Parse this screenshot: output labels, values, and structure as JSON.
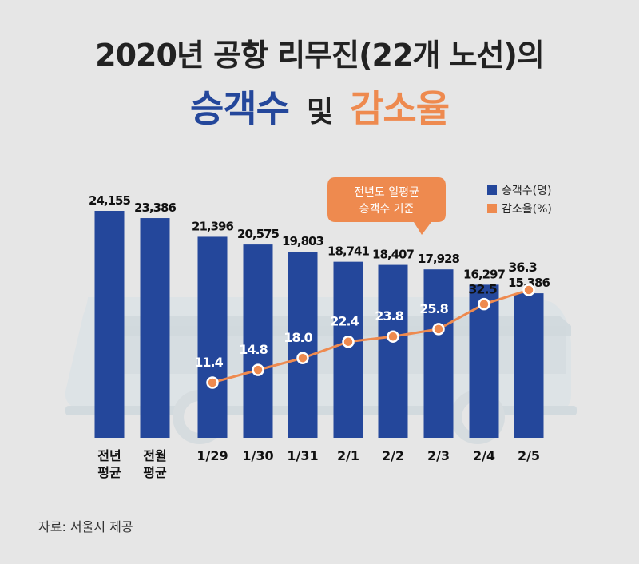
{
  "title": {
    "line1": "2020년 공항 리무진(22개 노선)의",
    "line2_blue": "승객수",
    "line2_mid": "및",
    "line2_orange": "감소율"
  },
  "source": "자료: 서울시 제공",
  "colors": {
    "bar": "#24479b",
    "line": "#ee8a4f",
    "background": "#e6e6e6",
    "bus_silhouette": "#dde3e6"
  },
  "chart_data": {
    "type": "bar+line",
    "categories": [
      "전년\n평균",
      "전월\n평균",
      "1/29",
      "1/30",
      "1/31",
      "2/1",
      "2/2",
      "2/3",
      "2/4",
      "2/5"
    ],
    "series": [
      {
        "name": "승객수(명)",
        "type": "bar",
        "values": [
          24155,
          23386,
          21396,
          20575,
          19803,
          18741,
          18407,
          17928,
          16297,
          15386
        ],
        "labels": [
          "24,155",
          "23,386",
          "21,396",
          "20,575",
          "19,803",
          "18,741",
          "18,407",
          "17,928",
          "16,297",
          "15,386"
        ]
      },
      {
        "name": "감소율(%)",
        "type": "line",
        "values": [
          null,
          null,
          11.4,
          14.8,
          18.0,
          22.4,
          23.8,
          25.8,
          32.5,
          36.3
        ],
        "labels": [
          null,
          null,
          "11.4",
          "14.8",
          "18.0",
          "22.4",
          "23.8",
          "25.8",
          "32.5",
          "36.3"
        ]
      }
    ],
    "legend": {
      "placement": "top-right",
      "items": [
        "승객수(명)",
        "감소율(%)"
      ]
    },
    "callout": "전년도 일평균\n승객수 기준",
    "ylim_bar": [
      0,
      24155
    ],
    "grid": false
  }
}
